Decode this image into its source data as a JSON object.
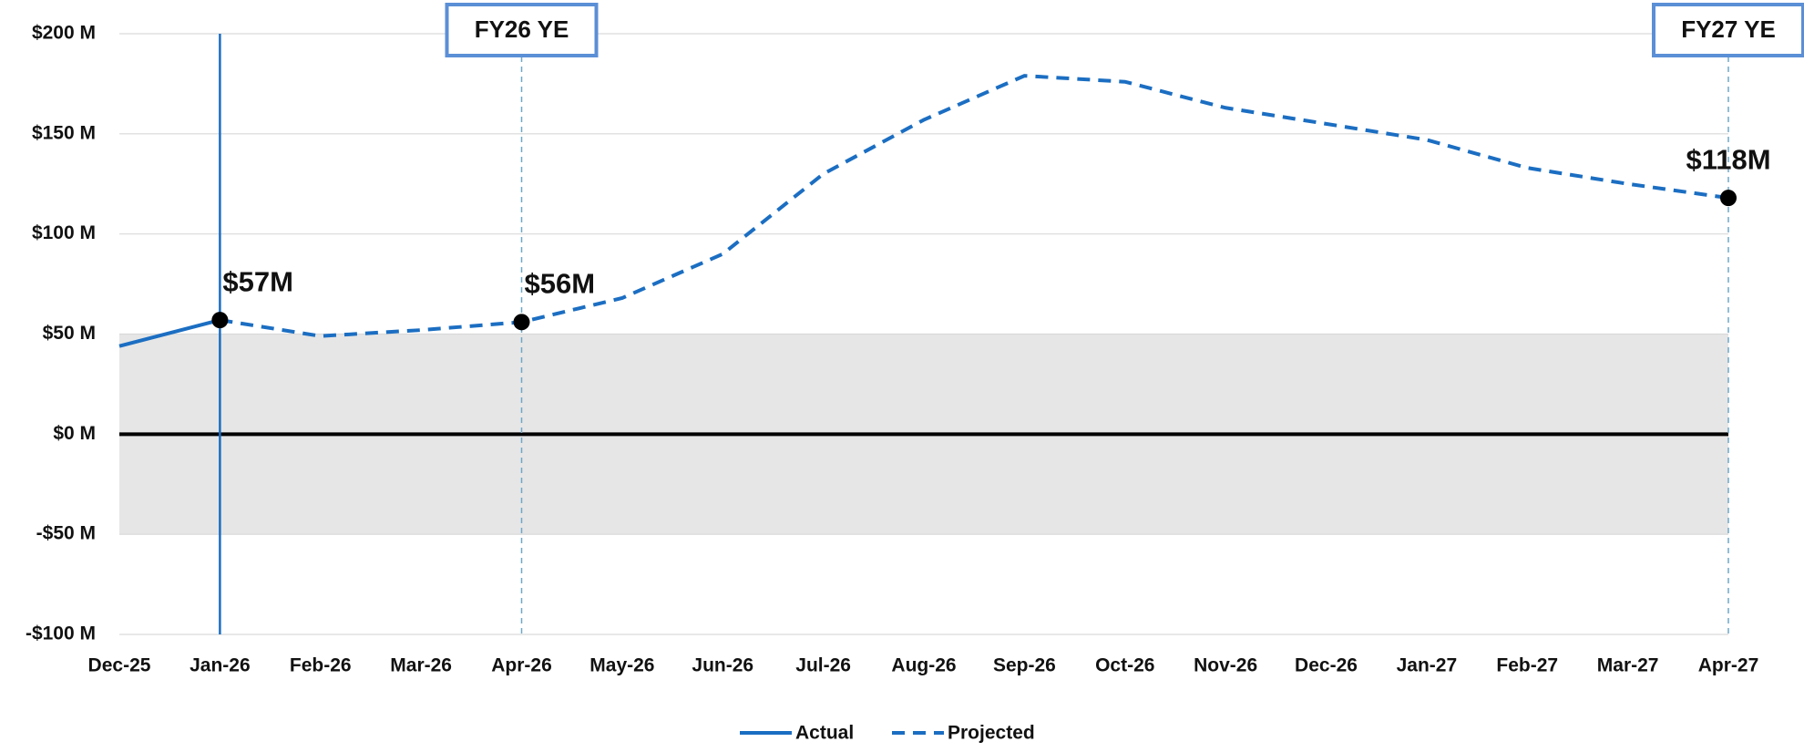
{
  "chart_data": {
    "type": "line",
    "categories": [
      "Dec-25",
      "Jan-26",
      "Feb-26",
      "Mar-26",
      "Apr-26",
      "May-26",
      "Jun-26",
      "Jul-26",
      "Aug-26",
      "Sep-26",
      "Oct-26",
      "Nov-26",
      "Dec-26",
      "Jan-27",
      "Feb-27",
      "Mar-27",
      "Apr-27"
    ],
    "series": [
      {
        "name": "Actual",
        "color": "#1b6ec2",
        "dash": false,
        "values": [
          44,
          57,
          null,
          null,
          null,
          null,
          null,
          null,
          null,
          null,
          null,
          null,
          null,
          null,
          null,
          null,
          null
        ]
      },
      {
        "name": "Projected",
        "color": "#1b6ec2",
        "dash": true,
        "values": [
          null,
          57,
          49,
          52,
          56,
          68,
          90,
          130,
          157,
          179,
          176,
          163,
          155,
          147,
          133,
          125,
          118
        ],
        "value_labels": [
          null,
          "$57M",
          null,
          null,
          "$56M",
          null,
          null,
          null,
          null,
          null,
          null,
          null,
          null,
          null,
          null,
          null,
          "$118M"
        ]
      }
    ],
    "ylim": [
      -100,
      200
    ],
    "yticks": [
      {
        "value": -100,
        "label": "-$100 M"
      },
      {
        "value": -50,
        "label": "-$50 M"
      },
      {
        "value": 0,
        "label": "$0 M"
      },
      {
        "value": 50,
        "label": "$50 M"
      },
      {
        "value": 100,
        "label": "$100 M"
      },
      {
        "value": 150,
        "label": "$150 M"
      },
      {
        "value": 200,
        "label": "$200 M"
      }
    ],
    "grid": true,
    "band": [
      -50,
      50
    ],
    "band_color": "#e6e6e6",
    "current_line": "Jan-26",
    "annotations": [
      {
        "text": "FY26 YE",
        "x": "Apr-26"
      },
      {
        "text": "FY27 YE",
        "x": "Apr-27"
      }
    ],
    "legend": "bottom"
  }
}
